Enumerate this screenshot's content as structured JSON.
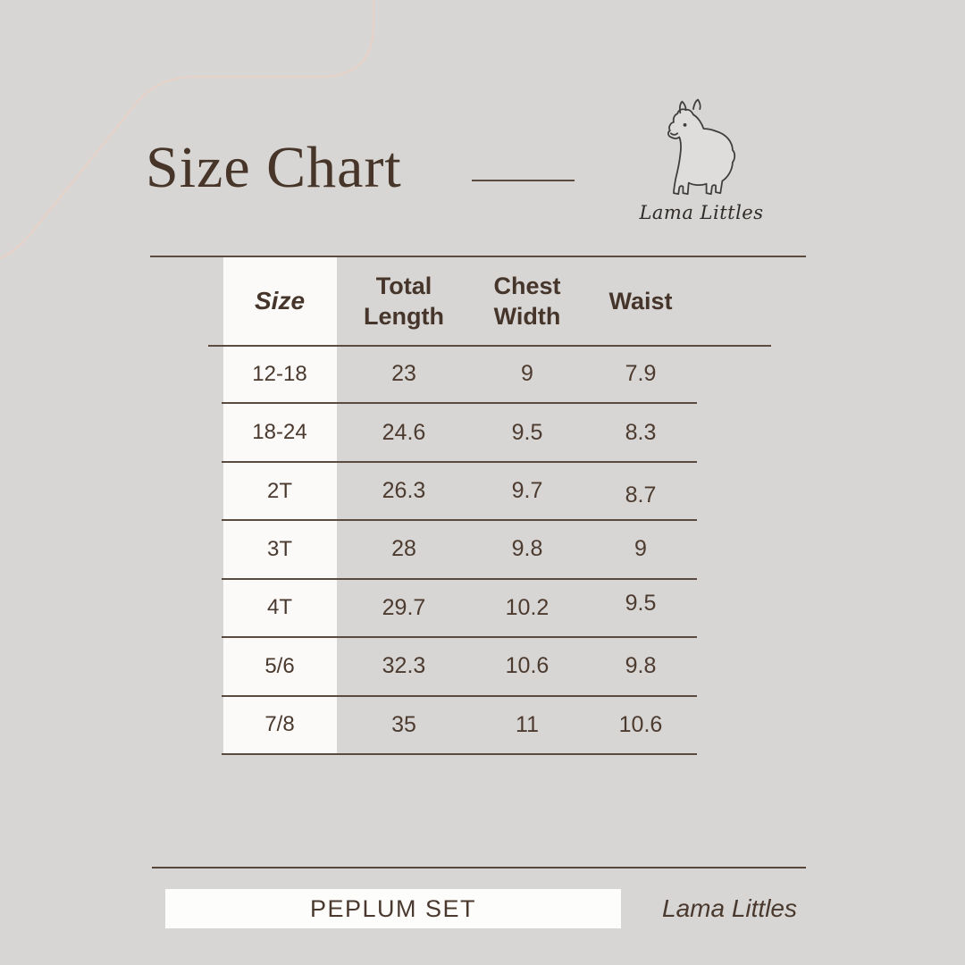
{
  "page": {
    "background_color": "#d7d6d4"
  },
  "header": {
    "title": "Size Chart"
  },
  "logo": {
    "icon": "alpaca-line-art-icon",
    "brand_script": "Lama Littles"
  },
  "chart_data": {
    "type": "table",
    "title": "Size Chart",
    "columns": [
      "Size",
      "Total Length",
      "Chest Width",
      "Waist"
    ],
    "rows": [
      [
        "12-18",
        "23",
        "9",
        "7.9"
      ],
      [
        "18-24",
        "24.6",
        "9.5",
        "8.3"
      ],
      [
        "2T",
        "26.3",
        "9.7",
        "8.7"
      ],
      [
        "3T",
        "28",
        "9.8",
        "9"
      ],
      [
        "4T",
        "29.7",
        "10.2",
        "9.5"
      ],
      [
        "5/6",
        "32.3",
        "10.6",
        "9.8"
      ],
      [
        "7/8",
        "35",
        "11",
        "10.6"
      ]
    ]
  },
  "footer": {
    "product_label": "PEPLUM SET",
    "brand_name": "Lama Littles"
  },
  "colors": {
    "background": "#d7d6d4",
    "table_cell_white": "#fbfaf8",
    "text_brown": "#4a392e",
    "title_brown": "#463528",
    "line_brown": "#5c4b41",
    "decorative_curve_pink": "#e6d2c8"
  }
}
